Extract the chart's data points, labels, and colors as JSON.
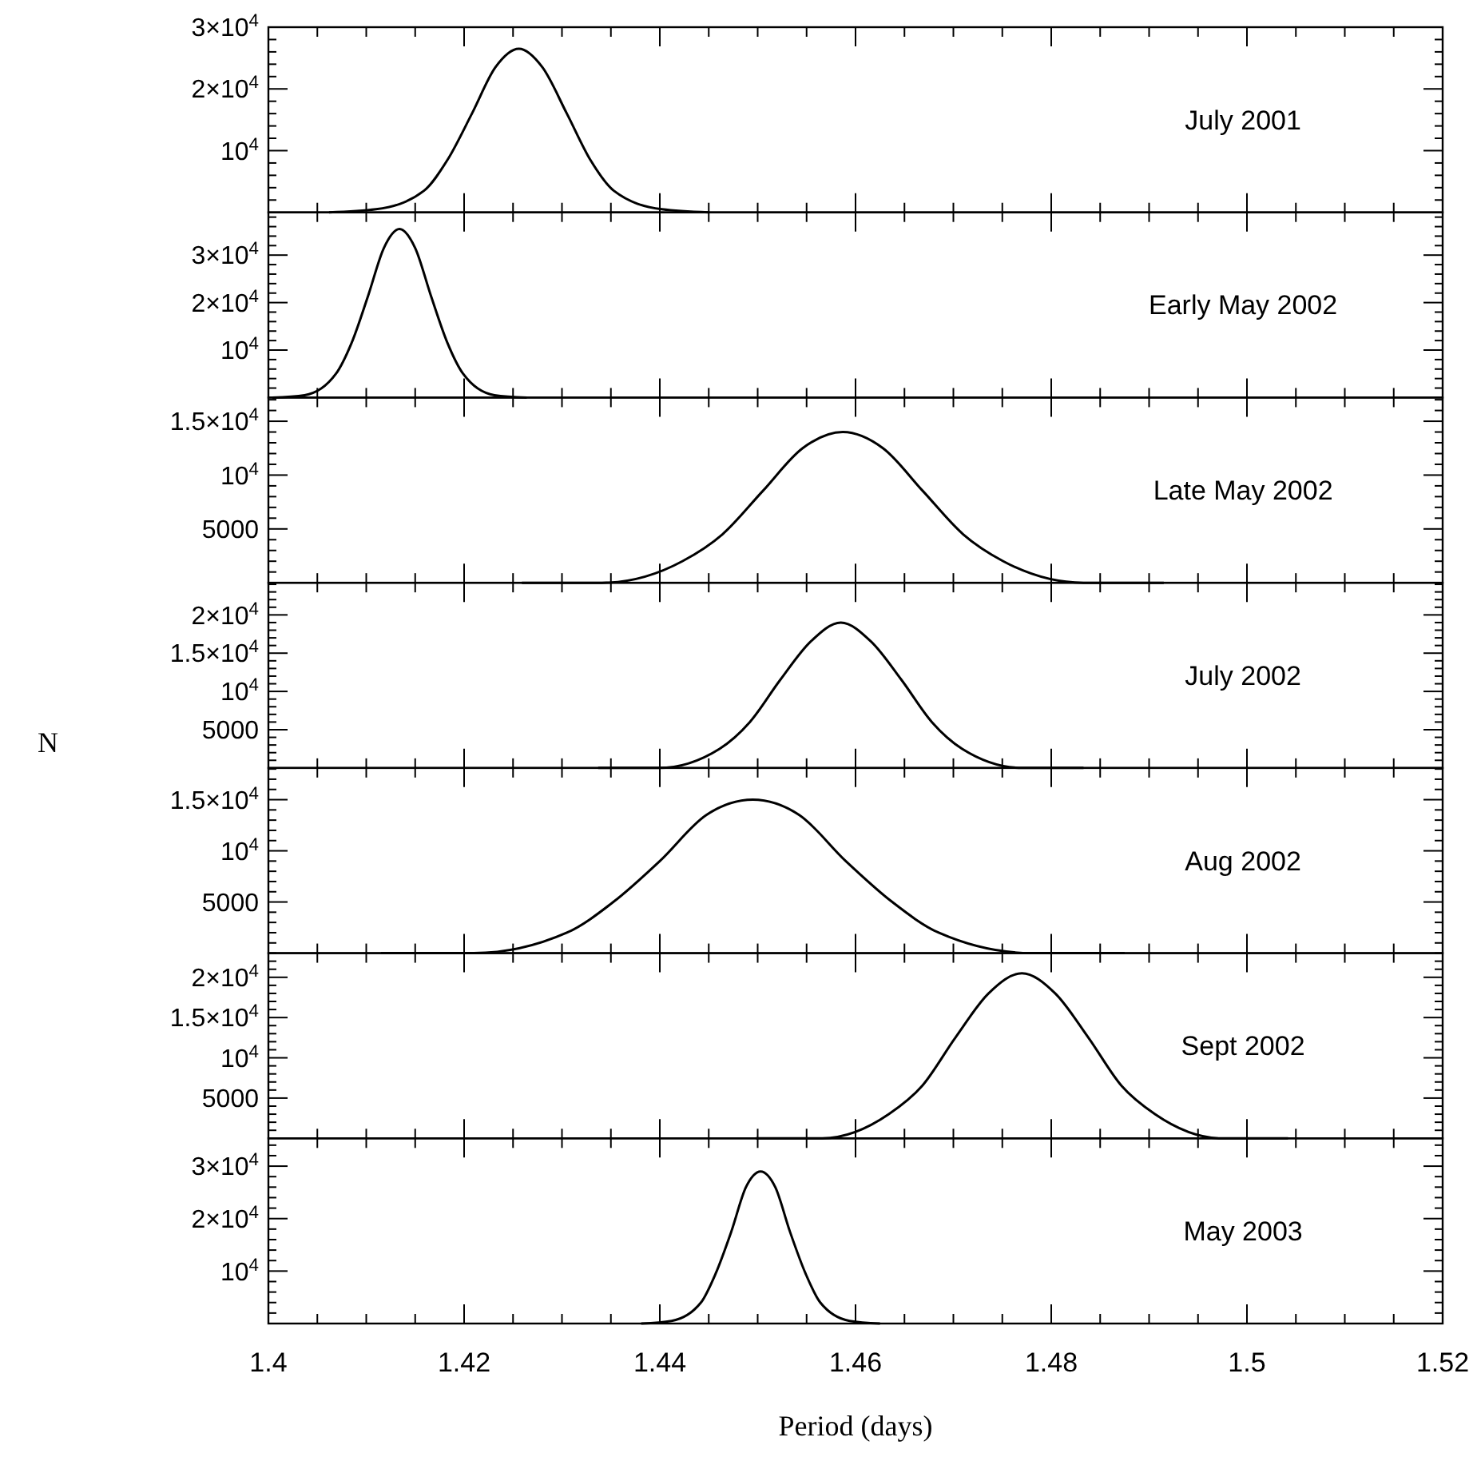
{
  "chart_data": [
    {
      "type": "line",
      "annotations": [
        "July 2001"
      ],
      "xlim": [
        1.4,
        1.52
      ],
      "xticks": [
        1.4,
        {
          "value": 1.405,
          "label": null
        },
        {
          "value": 1.41,
          "label": null
        },
        {
          "value": 1.415,
          "label": null
        },
        1.42,
        {
          "value": 1.425,
          "label": null
        },
        {
          "value": 1.43,
          "label": null
        },
        {
          "value": 1.435,
          "label": null
        },
        1.44,
        {
          "value": 1.445,
          "label": null
        },
        {
          "value": 1.45,
          "label": null
        },
        {
          "value": 1.455,
          "label": null
        },
        1.46,
        {
          "value": 1.465,
          "label": null
        },
        {
          "value": 1.47,
          "label": null
        },
        {
          "value": 1.475,
          "label": null
        },
        1.48,
        {
          "value": 1.485,
          "label": null
        },
        {
          "value": 1.49,
          "label": null
        },
        {
          "value": 1.495,
          "label": null
        },
        1.5,
        {
          "value": 1.505,
          "label": null
        },
        {
          "value": 1.51,
          "label": null
        },
        {
          "value": 1.515,
          "label": null
        },
        1.52
      ],
      "ylim": [
        0,
        30000
      ],
      "yticks": [
        {
          "value": 2000,
          "label": null
        },
        {
          "value": 4000,
          "label": null
        },
        {
          "value": 6000,
          "label": null
        },
        {
          "value": 8000,
          "label": null
        },
        {
          "value": 10000,
          "label": "10$^{4}$"
        },
        {
          "value": 12000,
          "label": null
        },
        {
          "value": 14000,
          "label": null
        },
        {
          "value": 16000,
          "label": null
        },
        {
          "value": 18000,
          "label": null
        },
        {
          "value": 20000,
          "label": "2×10$^{4}$"
        },
        {
          "value": 22000,
          "label": null
        },
        {
          "value": 24000,
          "label": null
        },
        {
          "value": 26000,
          "label": null
        },
        {
          "value": 28000,
          "label": null
        },
        {
          "value": 30000,
          "label": "3×10$^{4}$"
        }
      ],
      "tick_labels": "y",
      "x": [
        1.4062,
        1.411,
        1.4159,
        1.4183,
        1.4208,
        1.4232,
        1.4256,
        1.428,
        1.4305,
        1.4329,
        1.4353,
        1.4402,
        1.445
      ],
      "series": [
        {
          "color": "#000000",
          "values": [
            0,
            500,
            3500,
            8500,
            16000,
            23500,
            26500,
            23500,
            16000,
            8500,
            3500,
            500,
            0
          ]
        }
      ]
    },
    {
      "type": "line",
      "annotations": [
        "Early May 2002"
      ],
      "xlim": [
        1.4,
        1.52
      ],
      "xticks": [
        1.4,
        {
          "value": 1.405,
          "label": null
        },
        {
          "value": 1.41,
          "label": null
        },
        {
          "value": 1.415,
          "label": null
        },
        1.42,
        {
          "value": 1.425,
          "label": null
        },
        {
          "value": 1.43,
          "label": null
        },
        {
          "value": 1.435,
          "label": null
        },
        1.44,
        {
          "value": 1.445,
          "label": null
        },
        {
          "value": 1.45,
          "label": null
        },
        {
          "value": 1.455,
          "label": null
        },
        1.46,
        {
          "value": 1.465,
          "label": null
        },
        {
          "value": 1.47,
          "label": null
        },
        {
          "value": 1.475,
          "label": null
        },
        1.48,
        {
          "value": 1.485,
          "label": null
        },
        {
          "value": 1.49,
          "label": null
        },
        {
          "value": 1.495,
          "label": null
        },
        1.5,
        {
          "value": 1.505,
          "label": null
        },
        {
          "value": 1.51,
          "label": null
        },
        {
          "value": 1.515,
          "label": null
        },
        1.52
      ],
      "ylim": [
        0,
        39000
      ],
      "yticks": [
        {
          "value": 2000,
          "label": null
        },
        {
          "value": 4000,
          "label": null
        },
        {
          "value": 6000,
          "label": null
        },
        {
          "value": 8000,
          "label": null
        },
        {
          "value": 10000,
          "label": "10$^{4}$"
        },
        {
          "value": 12000,
          "label": null
        },
        {
          "value": 14000,
          "label": null
        },
        {
          "value": 16000,
          "label": null
        },
        {
          "value": 18000,
          "label": null
        },
        {
          "value": 20000,
          "label": "2×10$^{4}$"
        },
        {
          "value": 22000,
          "label": null
        },
        {
          "value": 24000,
          "label": null
        },
        {
          "value": 26000,
          "label": null
        },
        {
          "value": 28000,
          "label": null
        },
        {
          "value": 30000,
          "label": "3×10$^{4}$"
        },
        {
          "value": 32000,
          "label": null
        },
        {
          "value": 34000,
          "label": null
        },
        {
          "value": 36000,
          "label": null
        },
        {
          "value": 38000,
          "label": null
        }
      ],
      "tick_labels": "y",
      "x": [
        1.4004,
        1.4037,
        1.4069,
        1.4085,
        1.4102,
        1.4118,
        1.4134,
        1.415,
        1.4166,
        1.4183,
        1.4199,
        1.4231,
        1.4264
      ],
      "series": [
        {
          "color": "#000000",
          "values": [
            0,
            500,
            5000,
            11500,
            21500,
            31500,
            35500,
            31500,
            21500,
            11500,
            5000,
            500,
            0
          ]
        }
      ]
    },
    {
      "type": "line",
      "annotations": [
        "Late May 2002"
      ],
      "xlim": [
        1.4,
        1.52
      ],
      "xticks": [
        1.4,
        {
          "value": 1.405,
          "label": null
        },
        {
          "value": 1.41,
          "label": null
        },
        {
          "value": 1.415,
          "label": null
        },
        1.42,
        {
          "value": 1.425,
          "label": null
        },
        {
          "value": 1.43,
          "label": null
        },
        {
          "value": 1.435,
          "label": null
        },
        1.44,
        {
          "value": 1.445,
          "label": null
        },
        {
          "value": 1.45,
          "label": null
        },
        {
          "value": 1.455,
          "label": null
        },
        1.46,
        {
          "value": 1.465,
          "label": null
        },
        {
          "value": 1.47,
          "label": null
        },
        {
          "value": 1.475,
          "label": null
        },
        1.48,
        {
          "value": 1.485,
          "label": null
        },
        {
          "value": 1.49,
          "label": null
        },
        {
          "value": 1.495,
          "label": null
        },
        1.5,
        {
          "value": 1.505,
          "label": null
        },
        {
          "value": 1.51,
          "label": null
        },
        {
          "value": 1.515,
          "label": null
        },
        1.52
      ],
      "ylim": [
        0,
        17200
      ],
      "yticks": [
        {
          "value": 1000,
          "label": null
        },
        {
          "value": 2000,
          "label": null
        },
        {
          "value": 3000,
          "label": null
        },
        {
          "value": 4000,
          "label": null
        },
        {
          "value": 5000,
          "label": "5000"
        },
        {
          "value": 6000,
          "label": null
        },
        {
          "value": 7000,
          "label": null
        },
        {
          "value": 8000,
          "label": null
        },
        {
          "value": 9000,
          "label": null
        },
        {
          "value": 10000,
          "label": "10$^{4}$"
        },
        {
          "value": 11000,
          "label": null
        },
        {
          "value": 12000,
          "label": null
        },
        {
          "value": 13000,
          "label": null
        },
        {
          "value": 14000,
          "label": null
        },
        {
          "value": 15000,
          "label": "1.5×10$^{4}$"
        },
        {
          "value": 16000,
          "label": null
        },
        {
          "value": 17000,
          "label": null
        }
      ],
      "tick_labels": "y",
      "x": [
        1.4259,
        1.4341,
        1.4423,
        1.4464,
        1.4505,
        1.4546,
        1.4587,
        1.4628,
        1.4669,
        1.471,
        1.4751,
        1.4833,
        1.4915
      ],
      "series": [
        {
          "color": "#000000",
          "values": [
            0,
            0,
            2000,
            4500,
            8500,
            12500,
            14000,
            12500,
            8500,
            4500,
            2000,
            0,
            0
          ]
        }
      ]
    },
    {
      "type": "line",
      "ylabel": "N",
      "annotations": [
        "July 2002"
      ],
      "xlim": [
        1.4,
        1.52
      ],
      "xticks": [
        1.4,
        {
          "value": 1.405,
          "label": null
        },
        {
          "value": 1.41,
          "label": null
        },
        {
          "value": 1.415,
          "label": null
        },
        1.42,
        {
          "value": 1.425,
          "label": null
        },
        {
          "value": 1.43,
          "label": null
        },
        {
          "value": 1.435,
          "label": null
        },
        1.44,
        {
          "value": 1.445,
          "label": null
        },
        {
          "value": 1.45,
          "label": null
        },
        {
          "value": 1.455,
          "label": null
        },
        1.46,
        {
          "value": 1.465,
          "label": null
        },
        {
          "value": 1.47,
          "label": null
        },
        {
          "value": 1.475,
          "label": null
        },
        1.48,
        {
          "value": 1.485,
          "label": null
        },
        {
          "value": 1.49,
          "label": null
        },
        {
          "value": 1.495,
          "label": null
        },
        1.5,
        {
          "value": 1.505,
          "label": null
        },
        {
          "value": 1.51,
          "label": null
        },
        {
          "value": 1.515,
          "label": null
        },
        1.52
      ],
      "ylim": [
        0,
        24200
      ],
      "yticks": [
        {
          "value": 1000,
          "label": null
        },
        {
          "value": 2000,
          "label": null
        },
        {
          "value": 3000,
          "label": null
        },
        {
          "value": 4000,
          "label": null
        },
        {
          "value": 5000,
          "label": "5000"
        },
        {
          "value": 6000,
          "label": null
        },
        {
          "value": 7000,
          "label": null
        },
        {
          "value": 8000,
          "label": null
        },
        {
          "value": 9000,
          "label": null
        },
        {
          "value": 10000,
          "label": "10$^{4}$"
        },
        {
          "value": 11000,
          "label": null
        },
        {
          "value": 12000,
          "label": null
        },
        {
          "value": 13000,
          "label": null
        },
        {
          "value": 14000,
          "label": null
        },
        {
          "value": 15000,
          "label": "1.5×10$^{4}$"
        },
        {
          "value": 16000,
          "label": null
        },
        {
          "value": 17000,
          "label": null
        },
        {
          "value": 18000,
          "label": null
        },
        {
          "value": 19000,
          "label": null
        },
        {
          "value": 20000,
          "label": "2×10$^{4}$"
        },
        {
          "value": 21000,
          "label": null
        },
        {
          "value": 22000,
          "label": null
        },
        {
          "value": 23000,
          "label": null
        },
        {
          "value": 24000,
          "label": null
        }
      ],
      "tick_labels": "y",
      "x": [
        1.4337,
        1.4399,
        1.4461,
        1.4492,
        1.4523,
        1.4554,
        1.4585,
        1.4616,
        1.4647,
        1.4678,
        1.4709,
        1.4771,
        1.4833
      ],
      "series": [
        {
          "color": "#000000",
          "values": [
            0,
            0,
            2500,
            6000,
            11500,
            16500,
            19000,
            16500,
            11500,
            6000,
            2500,
            0,
            0
          ]
        }
      ]
    },
    {
      "type": "line",
      "annotations": [
        "Aug 2002"
      ],
      "xlim": [
        1.4,
        1.52
      ],
      "xticks": [
        1.4,
        {
          "value": 1.405,
          "label": null
        },
        {
          "value": 1.41,
          "label": null
        },
        {
          "value": 1.415,
          "label": null
        },
        1.42,
        {
          "value": 1.425,
          "label": null
        },
        {
          "value": 1.43,
          "label": null
        },
        {
          "value": 1.435,
          "label": null
        },
        1.44,
        {
          "value": 1.445,
          "label": null
        },
        {
          "value": 1.45,
          "label": null
        },
        {
          "value": 1.455,
          "label": null
        },
        1.46,
        {
          "value": 1.465,
          "label": null
        },
        {
          "value": 1.47,
          "label": null
        },
        {
          "value": 1.475,
          "label": null
        },
        1.48,
        {
          "value": 1.485,
          "label": null
        },
        {
          "value": 1.49,
          "label": null
        },
        {
          "value": 1.495,
          "label": null
        },
        1.5,
        {
          "value": 1.505,
          "label": null
        },
        {
          "value": 1.51,
          "label": null
        },
        {
          "value": 1.515,
          "label": null
        },
        1.52
      ],
      "ylim": [
        0,
        18100
      ],
      "yticks": [
        {
          "value": 1000,
          "label": null
        },
        {
          "value": 2000,
          "label": null
        },
        {
          "value": 3000,
          "label": null
        },
        {
          "value": 4000,
          "label": null
        },
        {
          "value": 5000,
          "label": "5000"
        },
        {
          "value": 6000,
          "label": null
        },
        {
          "value": 7000,
          "label": null
        },
        {
          "value": 8000,
          "label": null
        },
        {
          "value": 9000,
          "label": null
        },
        {
          "value": 10000,
          "label": "10$^{4}$"
        },
        {
          "value": 11000,
          "label": null
        },
        {
          "value": 12000,
          "label": null
        },
        {
          "value": 13000,
          "label": null
        },
        {
          "value": 14000,
          "label": null
        },
        {
          "value": 15000,
          "label": "1.5×10$^{4}$"
        },
        {
          "value": 16000,
          "label": null
        },
        {
          "value": 17000,
          "label": null
        },
        {
          "value": 18000,
          "label": null
        }
      ],
      "tick_labels": "y",
      "x": [
        1.4115,
        1.421,
        1.4305,
        1.43525,
        1.44,
        1.44475,
        1.4495,
        1.45425,
        1.459,
        1.46375,
        1.4685,
        1.478,
        1.4875
      ],
      "series": [
        {
          "color": "#000000",
          "values": [
            0,
            0,
            2000,
            5000,
            9000,
            13500,
            15000,
            13500,
            9000,
            5000,
            2000,
            0,
            0
          ]
        }
      ]
    },
    {
      "type": "line",
      "annotations": [
        "Sept 2002"
      ],
      "xlim": [
        1.4,
        1.52
      ],
      "xticks": [
        1.4,
        {
          "value": 1.405,
          "label": null
        },
        {
          "value": 1.41,
          "label": null
        },
        {
          "value": 1.415,
          "label": null
        },
        1.42,
        {
          "value": 1.425,
          "label": null
        },
        {
          "value": 1.43,
          "label": null
        },
        {
          "value": 1.435,
          "label": null
        },
        1.44,
        {
          "value": 1.445,
          "label": null
        },
        {
          "value": 1.45,
          "label": null
        },
        {
          "value": 1.455,
          "label": null
        },
        1.46,
        {
          "value": 1.465,
          "label": null
        },
        {
          "value": 1.47,
          "label": null
        },
        {
          "value": 1.475,
          "label": null
        },
        1.48,
        {
          "value": 1.485,
          "label": null
        },
        {
          "value": 1.49,
          "label": null
        },
        {
          "value": 1.495,
          "label": null
        },
        1.5,
        {
          "value": 1.505,
          "label": null
        },
        {
          "value": 1.51,
          "label": null
        },
        {
          "value": 1.515,
          "label": null
        },
        1.52
      ],
      "ylim": [
        0,
        23000
      ],
      "yticks": [
        {
          "value": 1000,
          "label": null
        },
        {
          "value": 2000,
          "label": null
        },
        {
          "value": 3000,
          "label": null
        },
        {
          "value": 4000,
          "label": null
        },
        {
          "value": 5000,
          "label": "5000"
        },
        {
          "value": 6000,
          "label": null
        },
        {
          "value": 7000,
          "label": null
        },
        {
          "value": 8000,
          "label": null
        },
        {
          "value": 9000,
          "label": null
        },
        {
          "value": 10000,
          "label": "10$^{4}$"
        },
        {
          "value": 11000,
          "label": null
        },
        {
          "value": 12000,
          "label": null
        },
        {
          "value": 13000,
          "label": null
        },
        {
          "value": 14000,
          "label": null
        },
        {
          "value": 15000,
          "label": "1.5×10$^{4}$"
        },
        {
          "value": 16000,
          "label": null
        },
        {
          "value": 17000,
          "label": null
        },
        {
          "value": 18000,
          "label": null
        },
        {
          "value": 19000,
          "label": null
        },
        {
          "value": 20000,
          "label": "2×10$^{4}$"
        },
        {
          "value": 21000,
          "label": null
        },
        {
          "value": 22000,
          "label": null
        },
        {
          "value": 23000,
          "label": null
        }
      ],
      "tick_labels": "y",
      "x": [
        1.4498,
        1.4566,
        1.4634,
        1.4668,
        1.4702,
        1.4736,
        1.477,
        1.4804,
        1.4838,
        1.4872,
        1.4906,
        1.4974,
        1.5042
      ],
      "series": [
        {
          "color": "#000000",
          "values": [
            0,
            0,
            3000,
            6500,
            12500,
            18000,
            20500,
            18000,
            12500,
            6500,
            3000,
            0,
            0
          ]
        }
      ]
    },
    {
      "type": "line",
      "xlabel": "Period (days)",
      "annotations": [
        "May 2003"
      ],
      "xlim": [
        1.4,
        1.52
      ],
      "xticks": [
        1.4,
        {
          "value": 1.405,
          "label": null
        },
        {
          "value": 1.41,
          "label": null
        },
        {
          "value": 1.415,
          "label": null
        },
        1.42,
        {
          "value": 1.425,
          "label": null
        },
        {
          "value": 1.43,
          "label": null
        },
        {
          "value": 1.435,
          "label": null
        },
        1.44,
        {
          "value": 1.445,
          "label": null
        },
        {
          "value": 1.45,
          "label": null
        },
        {
          "value": 1.455,
          "label": null
        },
        1.46,
        {
          "value": 1.465,
          "label": null
        },
        {
          "value": 1.47,
          "label": null
        },
        {
          "value": 1.475,
          "label": null
        },
        1.48,
        {
          "value": 1.485,
          "label": null
        },
        {
          "value": 1.49,
          "label": null
        },
        {
          "value": 1.495,
          "label": null
        },
        1.5,
        {
          "value": 1.505,
          "label": null
        },
        {
          "value": 1.51,
          "label": null
        },
        {
          "value": 1.515,
          "label": null
        },
        1.52
      ],
      "ylim": [
        0,
        35300
      ],
      "yticks": [
        {
          "value": 2000,
          "label": null
        },
        {
          "value": 4000,
          "label": null
        },
        {
          "value": 6000,
          "label": null
        },
        {
          "value": 8000,
          "label": null
        },
        {
          "value": 10000,
          "label": "10$^{4}$"
        },
        {
          "value": 12000,
          "label": null
        },
        {
          "value": 14000,
          "label": null
        },
        {
          "value": 16000,
          "label": null
        },
        {
          "value": 18000,
          "label": null
        },
        {
          "value": 20000,
          "label": "2×10$^{4}$"
        },
        {
          "value": 22000,
          "label": null
        },
        {
          "value": 24000,
          "label": null
        },
        {
          "value": 26000,
          "label": null
        },
        {
          "value": 28000,
          "label": null
        },
        {
          "value": 30000,
          "label": "3×10$^{4}$"
        },
        {
          "value": 32000,
          "label": null
        },
        {
          "value": 34000,
          "label": null
        }
      ],
      "x": [
        1.4381,
        1.4412,
        1.4442,
        1.4457,
        1.4473,
        1.4488,
        1.4503,
        1.4518,
        1.4533,
        1.4549,
        1.4564,
        1.4594,
        1.4625
      ],
      "series": [
        {
          "color": "#000000",
          "values": [
            0,
            500,
            4000,
            9500,
            17500,
            26000,
            29000,
            26000,
            17500,
            9500,
            4000,
            500,
            0
          ]
        }
      ]
    }
  ]
}
